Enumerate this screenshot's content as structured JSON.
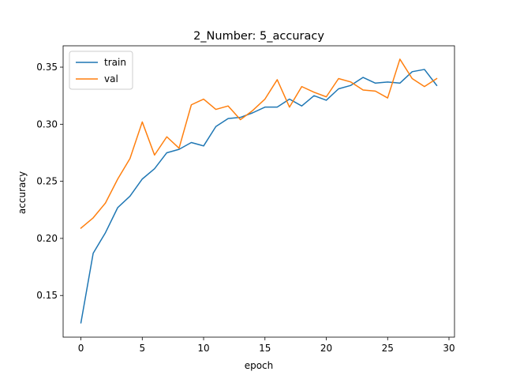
{
  "chart_data": {
    "type": "line",
    "title": "2_Number: 5_accuracy",
    "xlabel": "epoch",
    "ylabel": "accuracy",
    "xlim": [
      -1.45,
      30.45
    ],
    "ylim": [
      0.1135,
      0.3687
    ],
    "xticks": [
      0,
      5,
      10,
      15,
      20,
      25,
      30
    ],
    "xtick_labels": [
      "0",
      "5",
      "10",
      "15",
      "20",
      "25",
      "30"
    ],
    "yticks": [
      0.15,
      0.2,
      0.25,
      0.3,
      0.35
    ],
    "ytick_labels": [
      "0.15",
      "0.20",
      "0.25",
      "0.30",
      "0.35"
    ],
    "grid": false,
    "legend_position": "upper-left",
    "x": [
      0,
      1,
      2,
      3,
      4,
      5,
      6,
      7,
      8,
      9,
      10,
      11,
      12,
      13,
      14,
      15,
      16,
      17,
      18,
      19,
      20,
      21,
      22,
      23,
      24,
      25,
      26,
      27,
      28,
      29
    ],
    "series": [
      {
        "name": "train",
        "color": "#1f77b4",
        "values": [
          0.126,
          0.187,
          0.205,
          0.227,
          0.237,
          0.252,
          0.261,
          0.275,
          0.278,
          0.284,
          0.281,
          0.298,
          0.305,
          0.306,
          0.31,
          0.315,
          0.315,
          0.322,
          0.316,
          0.325,
          0.321,
          0.331,
          0.334,
          0.341,
          0.336,
          0.337,
          0.336,
          0.346,
          0.348,
          0.334
        ]
      },
      {
        "name": "val",
        "color": "#ff7f0e",
        "values": [
          0.209,
          0.218,
          0.231,
          0.252,
          0.27,
          0.302,
          0.273,
          0.289,
          0.279,
          0.317,
          0.322,
          0.313,
          0.316,
          0.304,
          0.312,
          0.322,
          0.339,
          0.315,
          0.333,
          0.328,
          0.324,
          0.34,
          0.337,
          0.33,
          0.329,
          0.323,
          0.357,
          0.34,
          0.333,
          0.34
        ]
      }
    ]
  }
}
